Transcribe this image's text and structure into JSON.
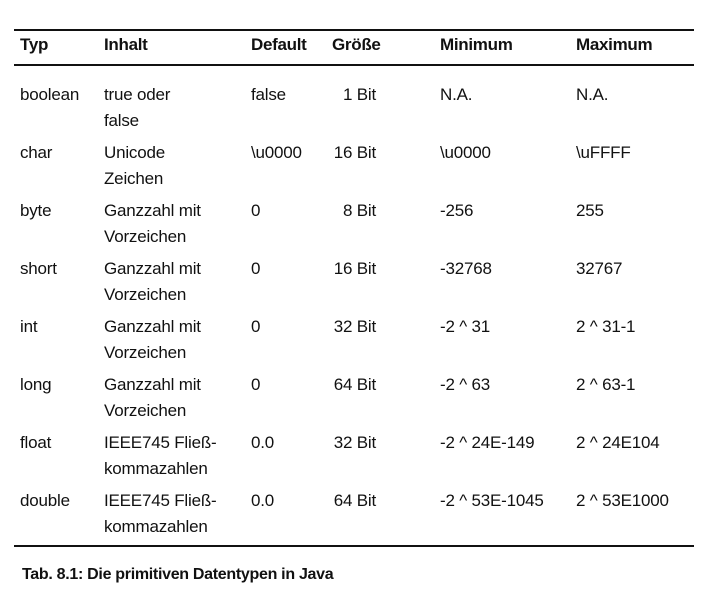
{
  "table": {
    "headers": [
      "Typ",
      "Inhalt",
      "Default",
      "Größe",
      "Minimum",
      "Maximum"
    ],
    "rows": [
      {
        "typ": "boolean",
        "inhalt": [
          "true oder",
          "false"
        ],
        "default": "false",
        "groesse": "1 Bit",
        "minimum": "N.A.",
        "maximum": "N.A."
      },
      {
        "typ": "char",
        "inhalt": [
          "Unicode",
          "Zeichen"
        ],
        "default": "\\u0000",
        "groesse": "16 Bit",
        "minimum": "\\u0000",
        "maximum": "\\uFFFF"
      },
      {
        "typ": "byte",
        "inhalt": [
          "Ganzzahl mit",
          "Vorzeichen"
        ],
        "default": "0",
        "groesse": "8 Bit",
        "minimum": "-256",
        "maximum": "255"
      },
      {
        "typ": "short",
        "inhalt": [
          "Ganzzahl mit",
          "Vorzeichen"
        ],
        "default": "0",
        "groesse": "16 Bit",
        "minimum": "-32768",
        "maximum": "32767"
      },
      {
        "typ": "int",
        "inhalt": [
          "Ganzzahl mit",
          "Vorzeichen"
        ],
        "default": "0",
        "groesse": "32 Bit",
        "minimum": "-2 ^ 31",
        "maximum": "2 ^ 31-1"
      },
      {
        "typ": "long",
        "inhalt": [
          "Ganzzahl mit",
          "Vorzeichen"
        ],
        "default": "0",
        "groesse": "64 Bit",
        "minimum": "-2 ^ 63",
        "maximum": "2 ^ 63-1"
      },
      {
        "typ": "float",
        "inhalt": [
          "IEEE745 Fließ-",
          "kommazahlen"
        ],
        "default": "0.0",
        "groesse": "32 Bit",
        "minimum": "-2 ^ 24E-149",
        "maximum": "2 ^ 24E104"
      },
      {
        "typ": "double",
        "inhalt": [
          "IEEE745 Fließ-",
          "kommazahlen"
        ],
        "default": "0.0",
        "groesse": "64 Bit",
        "minimum": "-2 ^ 53E-1045",
        "maximum": "2 ^ 53E1000"
      }
    ]
  },
  "caption": "Tab. 8.1: Die primitiven Datentypen in Java"
}
